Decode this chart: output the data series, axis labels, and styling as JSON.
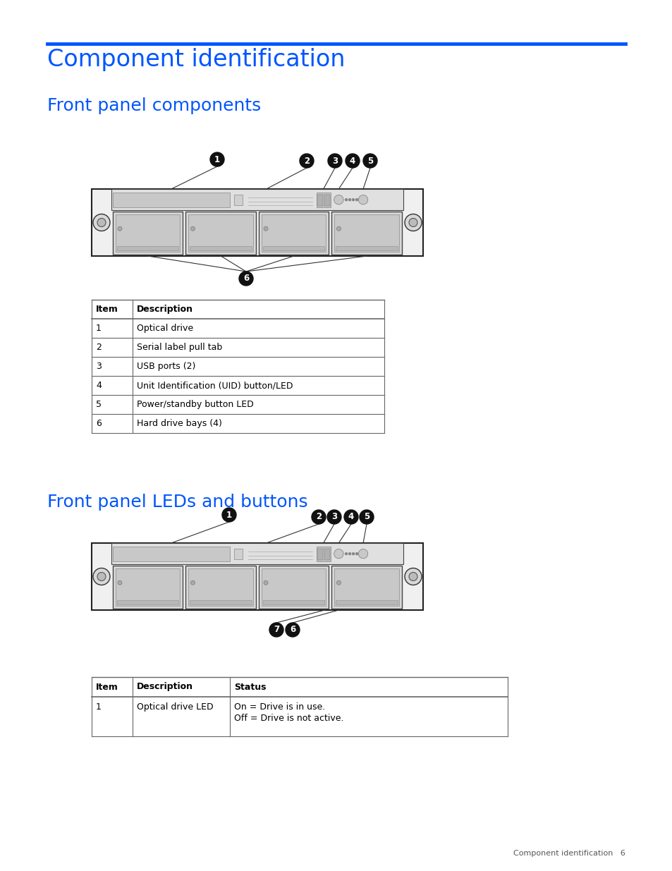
{
  "page_bg": "#ffffff",
  "blue_line_color": "#0055ff",
  "heading_color": "#0055ff",
  "text_color": "#000000",
  "table_border_color": "#666666",
  "title1": "Component identification",
  "title2": "Front panel components",
  "title3": "Front panel LEDs and buttons",
  "footer_text": "Component identification   6",
  "table1_headers": [
    "Item",
    "Description"
  ],
  "table1_rows": [
    [
      "1",
      "Optical drive"
    ],
    [
      "2",
      "Serial label pull tab"
    ],
    [
      "3",
      "USB ports (2)"
    ],
    [
      "4",
      "Unit Identification (UID) button/LED"
    ],
    [
      "5",
      "Power/standby button LED"
    ],
    [
      "6",
      "Hard drive bays (4)"
    ]
  ],
  "table2_headers": [
    "Item",
    "Description",
    "Status"
  ],
  "table2_rows": [
    [
      "1",
      "Optical drive LED",
      "On = Drive is in use.\nOff = Drive is not active."
    ]
  ]
}
